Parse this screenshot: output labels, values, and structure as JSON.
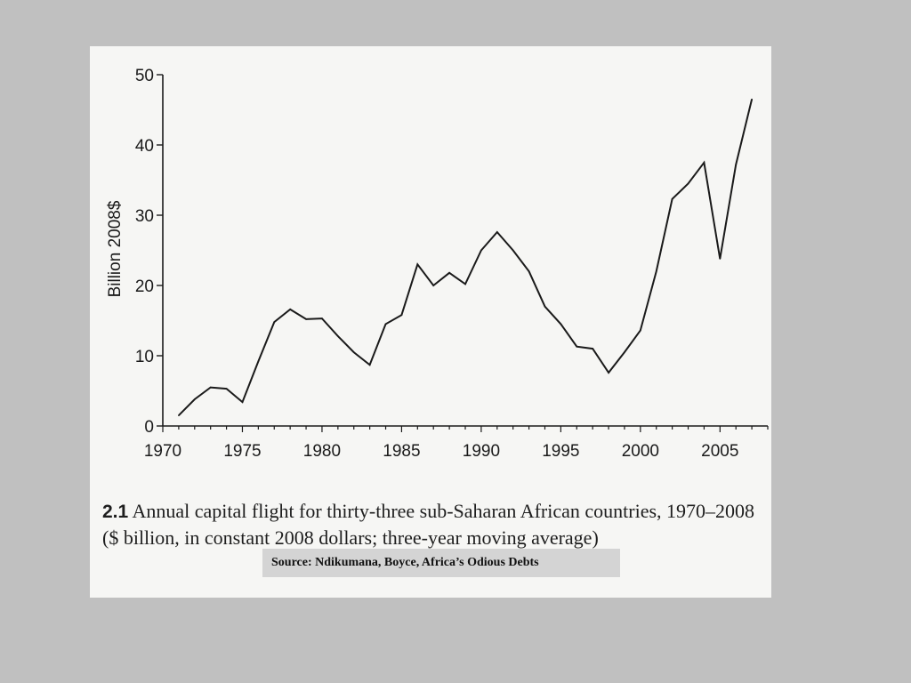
{
  "chart_data": {
    "type": "line",
    "title": "",
    "xlabel": "",
    "ylabel": "Billion 2008$",
    "xlim": [
      1970,
      2008
    ],
    "ylim": [
      0,
      50
    ],
    "xticks": [
      1970,
      1975,
      1980,
      1985,
      1990,
      1995,
      2000,
      2005
    ],
    "yticks": [
      0,
      10,
      20,
      30,
      40,
      50
    ],
    "grid": false,
    "series": [
      {
        "x": [
          1971,
          1972,
          1973,
          1974,
          1975,
          1976,
          1977,
          1978,
          1979,
          1980,
          1981,
          1982,
          1983,
          1984,
          1985,
          1986,
          1987,
          1988,
          1989,
          1990,
          1991,
          1992,
          1993,
          1994,
          1995,
          1996,
          1997,
          1998,
          1999,
          2000,
          2001,
          2002,
          2003,
          2004,
          2005,
          2006,
          2007
        ],
        "values": [
          1.5,
          3.8,
          5.5,
          5.3,
          3.4,
          9.2,
          14.8,
          16.6,
          15.2,
          15.3,
          12.8,
          10.5,
          8.7,
          14.5,
          15.8,
          23.0,
          20.0,
          21.8,
          20.2,
          25.0,
          27.6,
          25.0,
          22.0,
          17.0,
          14.5,
          11.3,
          11.0,
          7.6,
          10.5,
          13.6,
          22.0,
          32.3,
          34.5,
          37.5,
          23.8,
          37.2,
          46.5
        ]
      }
    ]
  },
  "caption": {
    "number": "2.1",
    "text": "Annual capital flight for thirty-three sub-Saharan African countries, 1970–2008 ($ billion, in constant 2008 dollars; three-year moving average)"
  },
  "source": "Source: Ndikumana, Boyce, Africa’s Odious Debts",
  "colors": {
    "background": "#c0c0c0",
    "paper": "#f6f6f4",
    "line": "#1a1a1a"
  }
}
